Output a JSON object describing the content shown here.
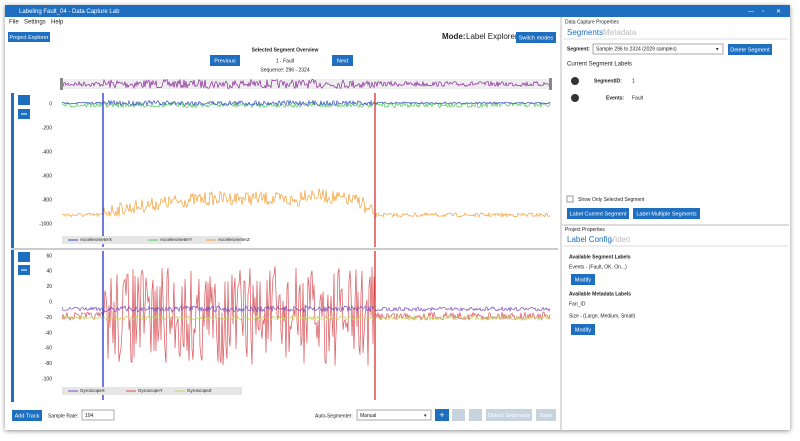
{
  "window": {
    "title": "Labeling Fault_04 - Data Capture Lab"
  },
  "menu": [
    "File",
    "Settings",
    "Help"
  ],
  "toolbar": {
    "project_explorer": "Project Explorer",
    "mode_label": "Mode:",
    "mode_value": "Label Explorer",
    "switch_modes": "Switch modes"
  },
  "overview": {
    "title": "Selected Segment Overview",
    "previous": "Previous",
    "next": "Next",
    "segment": "1 - Fault",
    "sequence": "Sequence: 296 - 2324"
  },
  "plots": [
    {
      "yticks": [
        0,
        -200,
        -400,
        -600,
        -800,
        -1000
      ],
      "legend": [
        "AccelerometerX",
        "AccelerometerY",
        "AccelerometerZ"
      ]
    },
    {
      "yticks": [
        60,
        40,
        20,
        0,
        -20,
        -40,
        -60,
        -80,
        -100
      ],
      "legend": [
        "GyroscopeX",
        "GyroscopeY",
        "GyroscopeZ"
      ]
    }
  ],
  "bottom": {
    "add_track": "Add Track",
    "sample_rate_label": "Sample Rate:",
    "sample_rate": "104",
    "auto_segmenter_label": "Auto-Segmenter:",
    "auto_segmenter": "Manual",
    "detect": "Detect Segments",
    "save": "Save"
  },
  "properties": {
    "title": "Data Capture Properties",
    "tabs": [
      "Segments",
      "Metadata"
    ],
    "segment_label": "Segment:",
    "segment_value": "Sample 296 to 2324 (2029 samples)",
    "delete": "Delete Segment",
    "current_labels": "Current Segment Labels",
    "segment_id_label": "SegmentID:",
    "segment_id": "1",
    "events_label": "Events:",
    "events": "Fault",
    "show_only": "Show Only Selected Segment",
    "label_current": "Label Current Segment",
    "label_multiple": "Label Multiple Segments"
  },
  "project": {
    "title": "Project Properties",
    "tabs": [
      "Label Config",
      "Video"
    ],
    "segment_labels": "Available Segment Labels",
    "events": "Events - (Fault, OK, On...)",
    "modify": "Modify",
    "metadata_labels": "Available Metadata Labels",
    "fan_id": "Fan_ID",
    "size": "Size - (Large, Medium, Small)"
  }
}
